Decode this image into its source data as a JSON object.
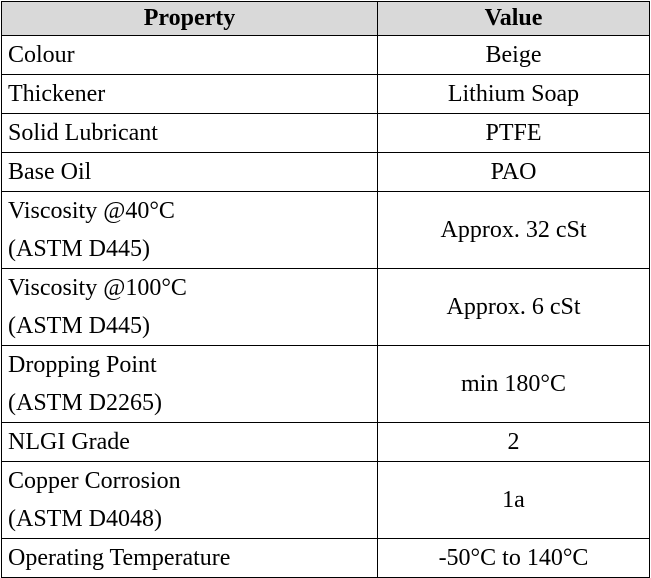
{
  "table": {
    "header": [
      "Property",
      "Value"
    ],
    "rows": [
      [
        [
          "Colour"
        ],
        [
          "Beige"
        ]
      ],
      [
        [
          "Thickener"
        ],
        [
          "Lithium Soap"
        ]
      ],
      [
        [
          "Solid Lubricant"
        ],
        [
          "PTFE"
        ]
      ],
      [
        [
          "Base Oil"
        ],
        [
          "PAO"
        ]
      ],
      [
        [
          "Viscosity @40°C",
          "(ASTM D445)"
        ],
        [
          "Approx. 32 cSt"
        ]
      ],
      [
        [
          "Viscosity @100°C",
          "(ASTM D445)"
        ],
        [
          "Approx. 6 cSt"
        ]
      ],
      [
        [
          "Dropping Point",
          "(ASTM D2265)"
        ],
        [
          "min 180°C"
        ]
      ],
      [
        [
          "NLGI Grade"
        ],
        [
          "2"
        ]
      ],
      [
        [
          "Copper Corrosion",
          "(ASTM D4048)"
        ],
        [
          "1a"
        ]
      ],
      [
        [
          "Operating Temperature"
        ],
        [
          "-50°C to 140°C"
        ]
      ]
    ]
  }
}
